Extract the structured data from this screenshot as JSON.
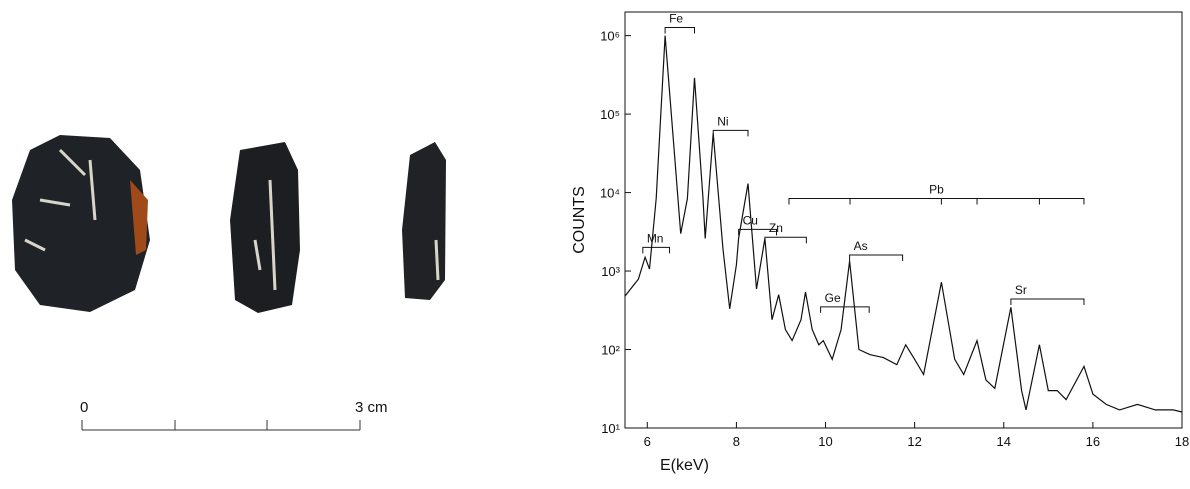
{
  "chart_data": {
    "type": "line",
    "xlabel": "E(keV)",
    "ylabel": "COUNTS",
    "xlim": [
      5.5,
      18
    ],
    "xticks": [
      6,
      8,
      10,
      12,
      14,
      16,
      18
    ],
    "ylim": [
      10,
      2000000
    ],
    "log_y": true,
    "yticks": [
      {
        "value": 10,
        "label": "10¹"
      },
      {
        "value": 100,
        "label": "10²"
      },
      {
        "value": 1000,
        "label": "10³"
      },
      {
        "value": 10000,
        "label": "10⁴"
      },
      {
        "value": 100000,
        "label": "10⁵"
      },
      {
        "value": 1000000,
        "label": "10⁶"
      }
    ],
    "color": "#111111",
    "x": [
      5.5,
      5.8,
      5.95,
      6.05,
      6.2,
      6.4,
      6.6,
      6.75,
      6.9,
      7.06,
      7.25,
      7.3,
      7.48,
      7.7,
      7.85,
      8.0,
      8.05,
      8.26,
      8.45,
      8.64,
      8.8,
      8.95,
      9.1,
      9.25,
      9.45,
      9.55,
      9.7,
      9.85,
      9.95,
      10.15,
      10.35,
      10.54,
      10.75,
      11.0,
      11.3,
      11.6,
      11.8,
      12.0,
      12.2,
      12.6,
      12.9,
      13.1,
      13.4,
      13.6,
      13.8,
      14.16,
      14.4,
      14.5,
      14.8,
      15.0,
      15.2,
      15.4,
      15.8,
      16.0,
      16.3,
      16.6,
      17.0,
      17.4,
      17.8,
      18
    ],
    "values": [
      480,
      790,
      1500,
      1060,
      8400,
      1000000,
      37000,
      3000,
      8400,
      290000,
      8400,
      2600,
      57000,
      1900,
      330,
      1200,
      2600,
      13000,
      590,
      2600,
      240,
      500,
      180,
      130,
      240,
      540,
      180,
      115,
      130,
      75,
      180,
      1340,
      100,
      86,
      79,
      64,
      115,
      75,
      48,
      720,
      75,
      48,
      130,
      41,
      32,
      345,
      30,
      17,
      115,
      30,
      30,
      23,
      61,
      27,
      20,
      17,
      20,
      17,
      17,
      16
    ],
    "annotations": [
      {
        "text": "Fe",
        "x": [
          6.4,
          7.06
        ],
        "y": 1270000
      },
      {
        "text": "Mn",
        "x": [
          5.9,
          6.5
        ],
        "y": 2000
      },
      {
        "text": "Ni",
        "x": [
          7.48,
          8.26
        ],
        "y": 62000
      },
      {
        "text": "Cu",
        "x": [
          8.05,
          8.9
        ],
        "y": 3400
      },
      {
        "text": "Zn",
        "x": [
          8.64,
          9.57
        ],
        "y": 2700
      },
      {
        "text": "As",
        "x": [
          10.54,
          11.73
        ],
        "y": 1600
      },
      {
        "text": "Ge",
        "x": [
          9.89,
          10.98
        ],
        "y": 350
      },
      {
        "text": "Pb",
        "x": [
          9.18,
          15.8
        ],
        "y": 8400,
        "ticks": [
          10.55,
          12.6,
          13.4,
          14.8
        ]
      },
      {
        "text": "Sr",
        "x": [
          14.16,
          15.8
        ],
        "y": 440
      }
    ]
  },
  "photo": {
    "scale_labels": [
      "0",
      "3 cm"
    ]
  }
}
